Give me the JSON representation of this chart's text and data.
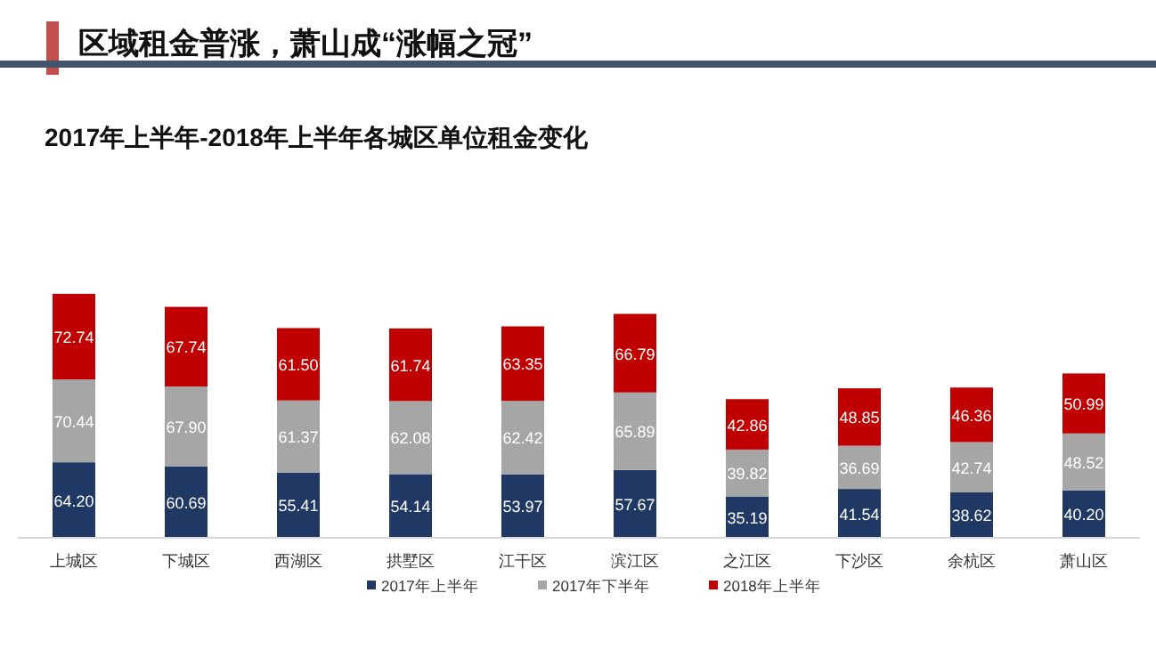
{
  "chart_data": {
    "type": "bar",
    "stacked": true,
    "legend": "bottom",
    "title": "区域租金普涨，萧山成“涨幅之冠”",
    "subtitle": "2017年上半年-2018年上半年各城区单位租金变化",
    "categories": [
      "上城区",
      "下城区",
      "西湖区",
      "拱墅区",
      "江干区",
      "滨江区",
      "之江区",
      "下沙区",
      "余杭区",
      "萧山区"
    ],
    "series": [
      {
        "name": "2017年上半年",
        "color": "#203864",
        "values": [
          64.2,
          60.69,
          55.41,
          54.14,
          53.97,
          57.67,
          35.19,
          41.54,
          38.62,
          40.2
        ],
        "value_labels": [
          "64.20",
          "60.69",
          "55.41",
          "54.14",
          "53.97",
          "57.67",
          "35.19",
          "41.54",
          "38.62",
          "40.20"
        ]
      },
      {
        "name": "2017年下半年",
        "color": "#a6a6a6",
        "values": [
          70.44,
          67.9,
          61.37,
          62.08,
          62.42,
          65.89,
          39.82,
          36.69,
          42.74,
          48.52
        ],
        "value_labels": [
          "70.44",
          "67.90",
          "61.37",
          "62.08",
          "62.42",
          "65.89",
          "39.82",
          "36.69",
          "42.74",
          "48.52"
        ]
      },
      {
        "name": "2018年上半年",
        "color": "#c00000",
        "values": [
          72.74,
          67.74,
          61.5,
          61.74,
          63.35,
          66.79,
          42.86,
          48.85,
          46.36,
          50.99
        ],
        "value_labels": [
          "72.74",
          "67.74",
          "61.50",
          "61.74",
          "63.35",
          "66.79",
          "42.86",
          "48.85",
          "46.36",
          "50.99"
        ]
      }
    ]
  }
}
